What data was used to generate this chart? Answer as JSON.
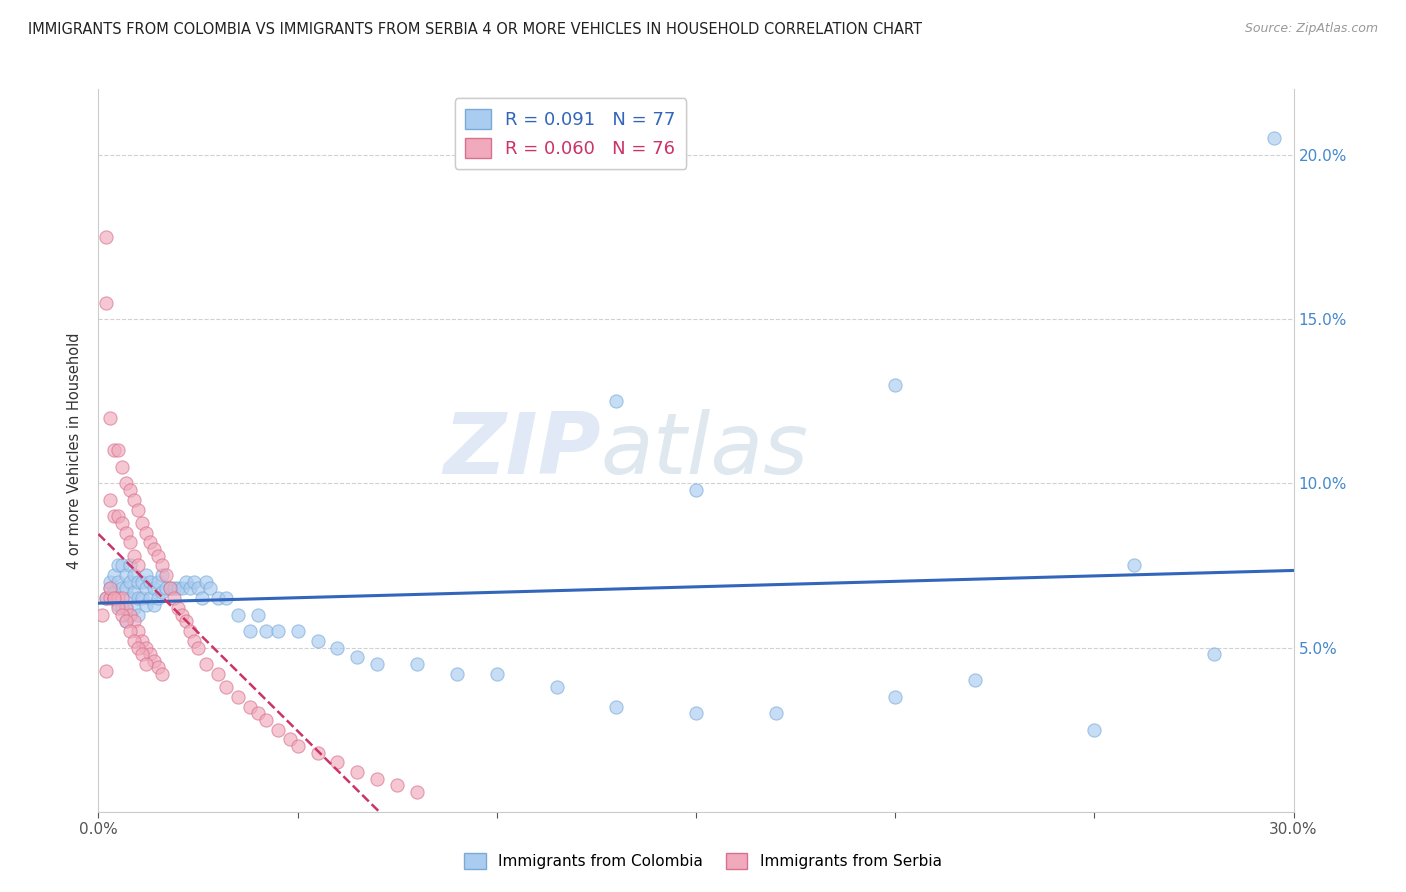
{
  "title": "IMMIGRANTS FROM COLOMBIA VS IMMIGRANTS FROM SERBIA 4 OR MORE VEHICLES IN HOUSEHOLD CORRELATION CHART",
  "source": "Source: ZipAtlas.com",
  "ylabel": "4 or more Vehicles in Household",
  "xlim": [
    0.0,
    0.3
  ],
  "ylim": [
    0.0,
    0.22
  ],
  "colombia_color": "#aaccf0",
  "serbia_color": "#f0aabb",
  "colombia_edge": "#7aaad8",
  "serbia_edge": "#d87090",
  "trendline_colombia_color": "#3366bb",
  "trendline_serbia_color": "#cc3366",
  "R_colombia": 0.091,
  "N_colombia": 77,
  "R_serbia": 0.06,
  "N_serbia": 76,
  "watermark_1": "ZIP",
  "watermark_2": "atlas",
  "colombia_x": [
    0.002,
    0.003,
    0.003,
    0.004,
    0.004,
    0.005,
    0.005,
    0.005,
    0.006,
    0.006,
    0.006,
    0.007,
    0.007,
    0.007,
    0.007,
    0.008,
    0.008,
    0.008,
    0.009,
    0.009,
    0.009,
    0.01,
    0.01,
    0.01,
    0.011,
    0.011,
    0.012,
    0.012,
    0.012,
    0.013,
    0.013,
    0.014,
    0.014,
    0.015,
    0.015,
    0.016,
    0.016,
    0.017,
    0.018,
    0.019,
    0.02,
    0.021,
    0.022,
    0.023,
    0.024,
    0.025,
    0.026,
    0.027,
    0.028,
    0.03,
    0.032,
    0.035,
    0.038,
    0.04,
    0.042,
    0.045,
    0.05,
    0.055,
    0.06,
    0.065,
    0.07,
    0.08,
    0.09,
    0.1,
    0.115,
    0.13,
    0.15,
    0.17,
    0.2,
    0.22,
    0.25,
    0.26,
    0.28,
    0.295,
    0.15,
    0.2,
    0.13
  ],
  "colombia_y": [
    0.065,
    0.068,
    0.07,
    0.072,
    0.067,
    0.075,
    0.07,
    0.063,
    0.075,
    0.068,
    0.062,
    0.072,
    0.068,
    0.062,
    0.058,
    0.075,
    0.07,
    0.065,
    0.072,
    0.067,
    0.062,
    0.07,
    0.065,
    0.06,
    0.07,
    0.065,
    0.072,
    0.068,
    0.063,
    0.07,
    0.065,
    0.068,
    0.063,
    0.07,
    0.065,
    0.072,
    0.067,
    0.068,
    0.068,
    0.068,
    0.068,
    0.068,
    0.07,
    0.068,
    0.07,
    0.068,
    0.065,
    0.07,
    0.068,
    0.065,
    0.065,
    0.06,
    0.055,
    0.06,
    0.055,
    0.055,
    0.055,
    0.052,
    0.05,
    0.047,
    0.045,
    0.045,
    0.042,
    0.042,
    0.038,
    0.032,
    0.03,
    0.03,
    0.035,
    0.04,
    0.025,
    0.075,
    0.048,
    0.205,
    0.098,
    0.13,
    0.125
  ],
  "serbia_x": [
    0.001,
    0.002,
    0.002,
    0.002,
    0.003,
    0.003,
    0.003,
    0.004,
    0.004,
    0.004,
    0.005,
    0.005,
    0.005,
    0.006,
    0.006,
    0.006,
    0.007,
    0.007,
    0.007,
    0.008,
    0.008,
    0.008,
    0.009,
    0.009,
    0.009,
    0.01,
    0.01,
    0.01,
    0.011,
    0.011,
    0.012,
    0.012,
    0.013,
    0.013,
    0.014,
    0.014,
    0.015,
    0.015,
    0.016,
    0.016,
    0.017,
    0.018,
    0.019,
    0.02,
    0.021,
    0.022,
    0.023,
    0.024,
    0.025,
    0.027,
    0.03,
    0.032,
    0.035,
    0.038,
    0.04,
    0.042,
    0.045,
    0.048,
    0.05,
    0.055,
    0.06,
    0.065,
    0.07,
    0.075,
    0.08,
    0.003,
    0.004,
    0.005,
    0.006,
    0.007,
    0.008,
    0.009,
    0.01,
    0.011,
    0.012,
    0.002
  ],
  "serbia_y": [
    0.06,
    0.175,
    0.155,
    0.065,
    0.12,
    0.095,
    0.065,
    0.11,
    0.09,
    0.065,
    0.11,
    0.09,
    0.065,
    0.105,
    0.088,
    0.065,
    0.1,
    0.085,
    0.062,
    0.098,
    0.082,
    0.06,
    0.095,
    0.078,
    0.058,
    0.092,
    0.075,
    0.055,
    0.088,
    0.052,
    0.085,
    0.05,
    0.082,
    0.048,
    0.08,
    0.046,
    0.078,
    0.044,
    0.075,
    0.042,
    0.072,
    0.068,
    0.065,
    0.062,
    0.06,
    0.058,
    0.055,
    0.052,
    0.05,
    0.045,
    0.042,
    0.038,
    0.035,
    0.032,
    0.03,
    0.028,
    0.025,
    0.022,
    0.02,
    0.018,
    0.015,
    0.012,
    0.01,
    0.008,
    0.006,
    0.068,
    0.065,
    0.062,
    0.06,
    0.058,
    0.055,
    0.052,
    0.05,
    0.048,
    0.045,
    0.043
  ]
}
